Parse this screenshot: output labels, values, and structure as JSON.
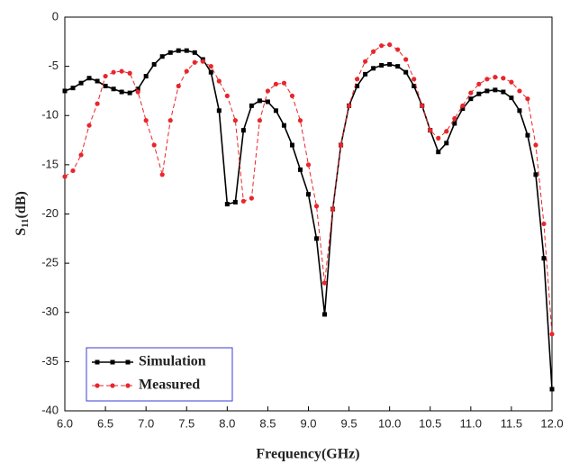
{
  "chart_data": {
    "type": "line",
    "xlabel": "Frequency(GHz)",
    "ylabel": {
      "main": "S",
      "sub": "11",
      "unit": "(dB)"
    },
    "x": [
      6.0,
      6.1,
      6.2,
      6.3,
      6.4,
      6.5,
      6.6,
      6.7,
      6.8,
      6.9,
      7.0,
      7.1,
      7.2,
      7.3,
      7.4,
      7.5,
      7.6,
      7.7,
      7.8,
      7.9,
      8.0,
      8.1,
      8.2,
      8.3,
      8.4,
      8.5,
      8.6,
      8.7,
      8.8,
      8.9,
      9.0,
      9.1,
      9.2,
      9.3,
      9.4,
      9.5,
      9.6,
      9.7,
      9.8,
      9.9,
      10.0,
      10.1,
      10.2,
      10.3,
      10.4,
      10.5,
      10.6,
      10.7,
      10.8,
      10.9,
      11.0,
      11.1,
      11.2,
      11.3,
      11.4,
      11.5,
      11.6,
      11.7,
      11.8,
      11.9,
      12.0
    ],
    "series": [
      {
        "name": "Simulation",
        "color": "#000000",
        "marker": "square",
        "dashed": false,
        "values": [
          -7.5,
          -7.2,
          -6.7,
          -6.2,
          -6.5,
          -7.0,
          -7.3,
          -7.6,
          -7.7,
          -7.3,
          -6.0,
          -4.8,
          -4.0,
          -3.6,
          -3.4,
          -3.4,
          -3.6,
          -4.3,
          -5.6,
          -9.5,
          -19.0,
          -18.8,
          -11.5,
          -9.0,
          -8.5,
          -8.6,
          -9.5,
          -11.0,
          -13.0,
          -15.5,
          -18.0,
          -22.5,
          -30.2,
          -19.5,
          -13.0,
          -9.0,
          -7.0,
          -5.8,
          -5.2,
          -4.9,
          -4.8,
          -5.0,
          -5.6,
          -7.0,
          -9.0,
          -11.5,
          -13.7,
          -12.8,
          -10.8,
          -9.3,
          -8.3,
          -7.8,
          -7.5,
          -7.4,
          -7.6,
          -8.2,
          -9.5,
          -12.0,
          -16.0,
          -24.5,
          -37.8
        ]
      },
      {
        "name": "Measured",
        "color": "#e8262b",
        "marker": "circle",
        "dashed": true,
        "values": [
          -16.2,
          -15.6,
          -14.0,
          -11.0,
          -8.8,
          -6.0,
          -5.6,
          -5.5,
          -5.7,
          -7.6,
          -10.5,
          -13.0,
          -16.0,
          -10.5,
          -7.0,
          -5.5,
          -4.6,
          -4.5,
          -5.0,
          -6.5,
          -8.0,
          -10.5,
          -18.7,
          -18.4,
          -10.5,
          -7.5,
          -6.8,
          -6.7,
          -8.0,
          -10.5,
          -15.0,
          -19.2,
          -27.0,
          -19.5,
          -13.0,
          -9.0,
          -6.3,
          -4.5,
          -3.5,
          -2.9,
          -2.8,
          -3.3,
          -4.3,
          -6.3,
          -9.0,
          -11.5,
          -12.3,
          -11.6,
          -10.3,
          -9.0,
          -7.7,
          -6.8,
          -6.3,
          -6.1,
          -6.2,
          -6.6,
          -7.5,
          -8.3,
          -13.0,
          -21.0,
          -32.2
        ]
      }
    ],
    "xlim": [
      6,
      12
    ],
    "xticks": [
      {
        "value": 6,
        "label": "6.0"
      },
      6.5,
      {
        "value": 7,
        "label": "7.0"
      },
      7.5,
      {
        "value": 8,
        "label": "8.0"
      },
      8.5,
      {
        "value": 9,
        "label": "9.0"
      },
      9.5,
      {
        "value": 10,
        "label": "10.0"
      },
      10.5,
      {
        "value": 11,
        "label": "11.0"
      },
      11.5,
      {
        "value": 12,
        "label": "12.0"
      }
    ],
    "ylim": [
      -40,
      0
    ],
    "yticks": [
      -40,
      -35,
      -30,
      -25,
      -20,
      -15,
      -10,
      -5,
      0
    ],
    "grid": false,
    "legend": "lower left"
  }
}
